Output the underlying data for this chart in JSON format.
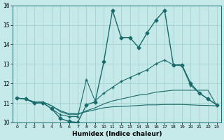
{
  "xlabel": "Humidex (Indice chaleur)",
  "xlim": [
    -0.5,
    23.5
  ],
  "ylim": [
    10,
    16
  ],
  "yticks": [
    10,
    11,
    12,
    13,
    14,
    15,
    16
  ],
  "xticks": [
    0,
    1,
    2,
    3,
    4,
    5,
    6,
    7,
    8,
    9,
    10,
    11,
    12,
    13,
    14,
    15,
    16,
    17,
    18,
    19,
    20,
    21,
    22,
    23
  ],
  "bg_color": "#c5e8e8",
  "grid_color": "#9fcece",
  "line_color": "#1a6b6b",
  "lines": [
    {
      "x": [
        0,
        1,
        2,
        3,
        4,
        5,
        6,
        7,
        8,
        9,
        10,
        11,
        12,
        13,
        14,
        15,
        16,
        17,
        18,
        19,
        20,
        21,
        22,
        23
      ],
      "y": [
        11.25,
        11.2,
        11.0,
        11.0,
        10.7,
        10.2,
        10.05,
        10.0,
        10.9,
        11.05,
        13.1,
        15.75,
        14.35,
        14.35,
        13.85,
        14.6,
        15.25,
        15.75,
        12.95,
        12.95,
        12.0,
        11.5,
        11.2,
        10.9
      ],
      "marker": "D",
      "markersize": 2.5,
      "linewidth": 1.0,
      "zorder": 3
    },
    {
      "x": [
        0,
        1,
        2,
        3,
        4,
        5,
        6,
        7,
        8,
        9,
        10,
        11,
        12,
        13,
        14,
        15,
        16,
        17,
        18,
        19,
        20,
        21,
        22,
        23
      ],
      "y": [
        11.25,
        11.2,
        11.0,
        11.0,
        10.7,
        10.4,
        10.3,
        10.3,
        12.2,
        11.1,
        11.5,
        11.8,
        12.1,
        12.3,
        12.5,
        12.7,
        13.0,
        13.2,
        12.95,
        12.9,
        11.9,
        11.5,
        11.2,
        10.9
      ],
      "marker": "+",
      "markersize": 3.5,
      "linewidth": 0.8,
      "zorder": 2
    },
    {
      "x": [
        0,
        1,
        2,
        3,
        4,
        5,
        6,
        7,
        8,
        9,
        10,
        11,
        12,
        13,
        14,
        15,
        16,
        17,
        18,
        19,
        20,
        21,
        22,
        23
      ],
      "y": [
        11.25,
        11.2,
        11.05,
        11.05,
        10.85,
        10.55,
        10.4,
        10.4,
        10.6,
        10.75,
        10.95,
        11.1,
        11.2,
        11.3,
        11.4,
        11.45,
        11.55,
        11.6,
        11.65,
        11.65,
        11.65,
        11.65,
        11.65,
        10.85
      ],
      "marker": null,
      "markersize": 0,
      "linewidth": 0.8,
      "zorder": 1
    },
    {
      "x": [
        0,
        1,
        2,
        3,
        4,
        5,
        6,
        7,
        8,
        9,
        10,
        11,
        12,
        13,
        14,
        15,
        16,
        17,
        18,
        19,
        20,
        21,
        22,
        23
      ],
      "y": [
        11.25,
        11.2,
        11.05,
        11.05,
        10.85,
        10.6,
        10.45,
        10.45,
        10.55,
        10.65,
        10.75,
        10.8,
        10.82,
        10.84,
        10.87,
        10.9,
        10.9,
        10.92,
        10.92,
        10.92,
        10.9,
        10.88,
        10.87,
        10.85
      ],
      "marker": null,
      "markersize": 0,
      "linewidth": 0.8,
      "zorder": 1
    }
  ]
}
